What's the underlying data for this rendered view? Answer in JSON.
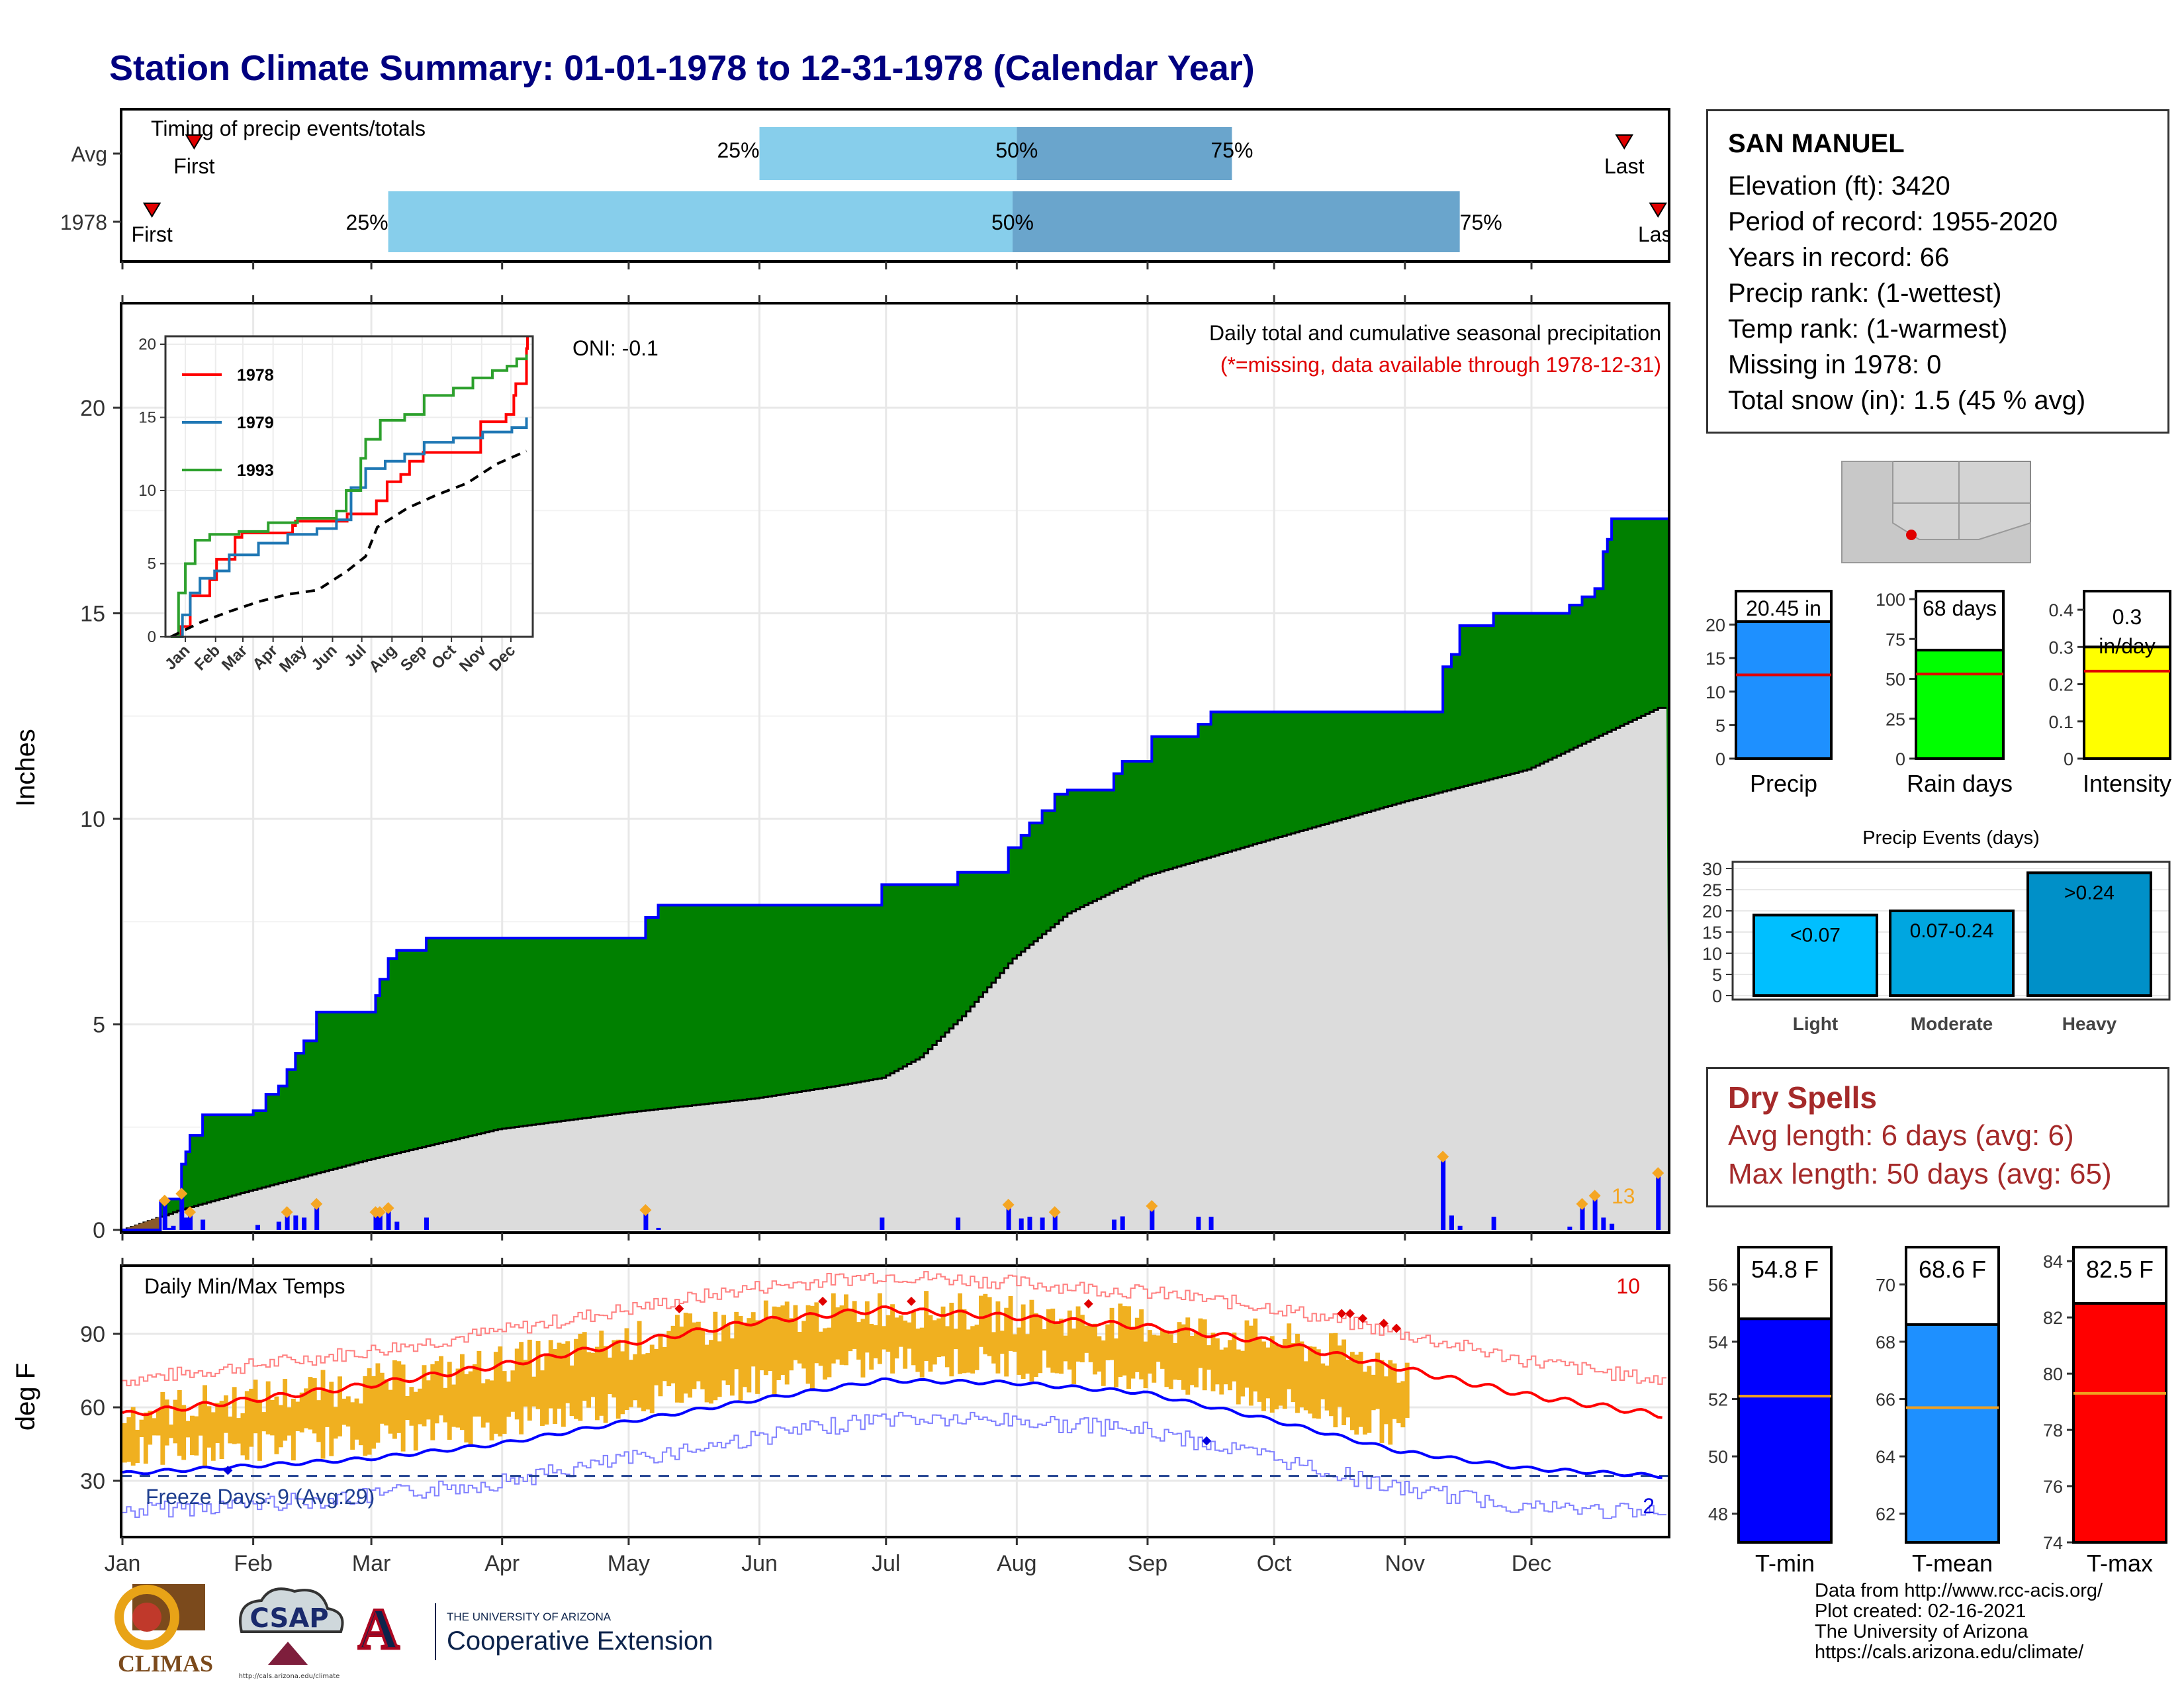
{
  "title": "Station Climate Summary: 01-01-1978 to 12-31-1978 (Calendar Year)",
  "station": {
    "name": "SAN MANUEL",
    "lines": [
      "Elevation (ft): 3420",
      "Period of record: 1955-2020",
      "Years in record: 66",
      "Precip rank:  (1-wettest)",
      "Temp rank:  (1-warmest)",
      "Missing in 1978: 0",
      "Total snow (in): 1.5 (45 % avg)"
    ]
  },
  "dry_spells": {
    "heading": "Dry Spells",
    "avg": "Avg length: 6 days (avg: 6)",
    "max": "Max length: 50 days (avg: 65)"
  },
  "credits": [
    "Data from http://www.rcc-acis.org/",
    "Plot created: 02-16-2021",
    "The University of Arizona",
    "https://cals.arizona.edu/climate/"
  ],
  "logos": {
    "climas": "CLIMAS",
    "csap": "CSAP",
    "csap_url": "http://cals.arizona.edu/climate",
    "ua_small": "THE UNIVERSITY OF ARIZONA",
    "ua_big": "Cooperative Extension"
  },
  "colors": {
    "precip_obs": "#008000",
    "precip_avg": "#dcdcdc",
    "cum_line": "#0000ff",
    "tmax": "#ff0000",
    "tmin": "#0000ff",
    "temp_bars": "#f0b020",
    "title": "#000080",
    "dry": "#a52a2a",
    "bar_light": "#87ceeb",
    "bar_dark": "#6aa5cc"
  },
  "chart_data": [
    {
      "type": "bar",
      "id": "timing",
      "title": "Timing of precip events/totals",
      "rows": [
        {
          "label": "Avg",
          "first": "Jan 18",
          "p25": "Jun 1",
          "p50": "Aug 1",
          "p75": "Sep 21",
          "last": "Dec 23",
          "first_label": "First",
          "last_label": "Last"
        },
        {
          "label": "1978",
          "first": "Jan 8",
          "p25": "Mar 5",
          "p50": "Jul 31",
          "p75": "Nov 14",
          "last": "Dec 31",
          "first_label": "First",
          "last_label": "Last"
        }
      ],
      "pct_labels": [
        "25%",
        "50%",
        "75%"
      ]
    },
    {
      "type": "area",
      "id": "precip",
      "title": "Daily total and cumulative seasonal precipitation",
      "subtitle": "(*=missing, data available through 1978-12-31)",
      "annotation": "ONI: -0.1",
      "ylabel": "Inches",
      "ylim": [
        0,
        22.5
      ],
      "yticks": [
        0,
        5,
        10,
        15,
        20
      ],
      "xticks": [
        "Jan",
        "Feb",
        "Mar",
        "Apr",
        "May",
        "Jun",
        "Jul",
        "Aug",
        "Sep",
        "Oct",
        "Nov",
        "Dec"
      ],
      "corner_count": "13",
      "cumulative_obs": [
        [
          1,
          0
        ],
        [
          10,
          0.7
        ],
        [
          12,
          0.75
        ],
        [
          15,
          1.6
        ],
        [
          16,
          1.9
        ],
        [
          17,
          2.3
        ],
        [
          20,
          2.8
        ],
        [
          31,
          2.8
        ],
        [
          32,
          2.9
        ],
        [
          35,
          3.3
        ],
        [
          38,
          3.5
        ],
        [
          40,
          3.9
        ],
        [
          42,
          4.3
        ],
        [
          44,
          4.6
        ],
        [
          45,
          4.6
        ],
        [
          47,
          5.3
        ],
        [
          60,
          5.3
        ],
        [
          61,
          5.7
        ],
        [
          62,
          6.1
        ],
        [
          64,
          6.6
        ],
        [
          66,
          6.8
        ],
        [
          72,
          6.8
        ],
        [
          73,
          7.1
        ],
        [
          124,
          7.1
        ],
        [
          125,
          7.6
        ],
        [
          128,
          7.9
        ],
        [
          180,
          7.9
        ],
        [
          181,
          8.4
        ],
        [
          198,
          8.4
        ],
        [
          199,
          8.7
        ],
        [
          210,
          8.7
        ],
        [
          211,
          9.3
        ],
        [
          214,
          9.6
        ],
        [
          216,
          9.9
        ],
        [
          219,
          10.2
        ],
        [
          222,
          10.6
        ],
        [
          225,
          10.7
        ],
        [
          235,
          10.7
        ],
        [
          236,
          11.1
        ],
        [
          238,
          11.4
        ],
        [
          244,
          11.4
        ],
        [
          245,
          12.0
        ],
        [
          255,
          12.0
        ],
        [
          256,
          12.3
        ],
        [
          259,
          12.6
        ],
        [
          313,
          12.6
        ],
        [
          314,
          13.7
        ],
        [
          316,
          14.0
        ],
        [
          318,
          14.7
        ],
        [
          325,
          14.7
        ],
        [
          326,
          15.0
        ],
        [
          343,
          15.0
        ],
        [
          344,
          15.2
        ],
        [
          347,
          15.4
        ],
        [
          349,
          15.4
        ],
        [
          350,
          15.6
        ],
        [
          352,
          16.5
        ],
        [
          353,
          16.8
        ],
        [
          354,
          17.3
        ],
        [
          367,
          17.3
        ],
        [
          368,
          17.4
        ],
        [
          369,
          18.5
        ],
        [
          385,
          18.5
        ],
        [
          386,
          19.7
        ],
        [
          400,
          19.7
        ],
        [
          401,
          19.9
        ],
        [
          403,
          20.5
        ]
      ],
      "cumulative_avg": [
        [
          1,
          0
        ],
        [
          15,
          0.5
        ],
        [
          31,
          0.95
        ],
        [
          59,
          1.7
        ],
        [
          90,
          2.45
        ],
        [
          120,
          2.85
        ],
        [
          151,
          3.2
        ],
        [
          170,
          3.5
        ],
        [
          181,
          3.7
        ],
        [
          190,
          4.2
        ],
        [
          200,
          5.2
        ],
        [
          212,
          6.6
        ],
        [
          225,
          7.7
        ],
        [
          243,
          8.6
        ],
        [
          273,
          9.5
        ],
        [
          304,
          10.4
        ],
        [
          334,
          11.2
        ],
        [
          365,
          12.7
        ]
      ],
      "daily_days": [
        11,
        12,
        13,
        15,
        16,
        17,
        20,
        33,
        38,
        40,
        42,
        44,
        47,
        61,
        62,
        64,
        66,
        73,
        125,
        128,
        181,
        199,
        211,
        214,
        216,
        219,
        222,
        236,
        238,
        245,
        256,
        259,
        314,
        316,
        318,
        326,
        344,
        347,
        350,
        352,
        354,
        365
      ],
      "daily_vals": [
        0.68,
        0.05,
        0.1,
        0.85,
        0.3,
        0.4,
        0.25,
        0.12,
        0.2,
        0.4,
        0.35,
        0.3,
        0.6,
        0.4,
        0.4,
        0.5,
        0.2,
        0.3,
        0.45,
        0.05,
        0.3,
        0.3,
        0.58,
        0.28,
        0.32,
        0.3,
        0.4,
        0.25,
        0.33,
        0.55,
        0.32,
        0.32,
        1.75,
        0.35,
        0.1,
        0.32,
        0.08,
        0.6,
        0.8,
        0.3,
        0.15,
        1.35
      ],
      "series": [
        {
          "name": "1978"
        }
      ]
    },
    {
      "type": "line",
      "id": "inset",
      "ylim": [
        0,
        20
      ],
      "yticks": [
        0,
        5,
        10,
        15,
        20
      ],
      "xticks": [
        "Jan",
        "Feb",
        "Mar",
        "Apr",
        "May",
        "Jun",
        "Jul",
        "Aug",
        "Sep",
        "Oct",
        "Nov",
        "Dec"
      ],
      "series": [
        {
          "name": "1978",
          "color": "#ff0000",
          "points": [
            [
              0,
              0
            ],
            [
              10,
              0.7
            ],
            [
              20,
              2.8
            ],
            [
              40,
              3.9
            ],
            [
              47,
              5.3
            ],
            [
              66,
              6.8
            ],
            [
              73,
              7.1
            ],
            [
              125,
              7.6
            ],
            [
              128,
              7.9
            ],
            [
              180,
              7.9
            ],
            [
              181,
              8.4
            ],
            [
              211,
              9.3
            ],
            [
              222,
              10.6
            ],
            [
              236,
              11.1
            ],
            [
              245,
              12.0
            ],
            [
              259,
              12.6
            ],
            [
              313,
              12.6
            ],
            [
              318,
              14.7
            ],
            [
              344,
              15.2
            ],
            [
              352,
              16.5
            ],
            [
              354,
              17.3
            ],
            [
              365,
              19.7
            ],
            [
              366,
              20.5
            ]
          ]
        },
        {
          "name": "1979",
          "color": "#1f77b4",
          "points": [
            [
              0,
              0
            ],
            [
              12,
              1.5
            ],
            [
              20,
              3.0
            ],
            [
              30,
              4.0
            ],
            [
              45,
              4.5
            ],
            [
              60,
              5.6
            ],
            [
              90,
              6.4
            ],
            [
              120,
              7.0
            ],
            [
              150,
              7.4
            ],
            [
              170,
              8.0
            ],
            [
              185,
              10.2
            ],
            [
              200,
              11.5
            ],
            [
              220,
              12.0
            ],
            [
              240,
              12.5
            ],
            [
              260,
              13.3
            ],
            [
              290,
              13.6
            ],
            [
              320,
              14.0
            ],
            [
              350,
              14.3
            ],
            [
              365,
              15.0
            ]
          ]
        },
        {
          "name": "1993",
          "color": "#2ca02c",
          "points": [
            [
              0,
              0
            ],
            [
              8,
              3.0
            ],
            [
              15,
              5.0
            ],
            [
              25,
              6.6
            ],
            [
              40,
              7.0
            ],
            [
              70,
              7.2
            ],
            [
              100,
              7.8
            ],
            [
              130,
              8.1
            ],
            [
              170,
              8.6
            ],
            [
              180,
              10.0
            ],
            [
              195,
              12.2
            ],
            [
              200,
              13.5
            ],
            [
              215,
              14.8
            ],
            [
              240,
              15.2
            ],
            [
              260,
              16.5
            ],
            [
              290,
              17.0
            ],
            [
              310,
              17.7
            ],
            [
              330,
              18.2
            ],
            [
              345,
              18.5
            ],
            [
              355,
              19.0
            ],
            [
              365,
              19.3
            ]
          ]
        },
        {
          "name": "Avg",
          "color": "#000000",
          "points": [
            [
              0,
              0
            ],
            [
              31,
              1.0
            ],
            [
              59,
              1.7
            ],
            [
              90,
              2.4
            ],
            [
              120,
              2.9
            ],
            [
              151,
              3.2
            ],
            [
              181,
              4.5
            ],
            [
              200,
              5.5
            ],
            [
              212,
              7.5
            ],
            [
              243,
              8.8
            ],
            [
              273,
              9.7
            ],
            [
              304,
              10.5
            ],
            [
              334,
              11.8
            ],
            [
              365,
              12.7
            ]
          ]
        }
      ]
    },
    {
      "type": "line",
      "id": "temps",
      "title": "Daily Min/Max Temps",
      "ylabel": "deg F",
      "ylim": [
        10,
        115
      ],
      "yticks": [
        30,
        60,
        90
      ],
      "xticks": [
        "Jan",
        "Feb",
        "Mar",
        "Apr",
        "May",
        "Jun",
        "Jul",
        "Aug",
        "Sep",
        "Oct",
        "Nov",
        "Dec"
      ],
      "freeze_label": "Freeze Days: 9 (Avg:29)",
      "count_hot": "10",
      "count_cold": "2",
      "avg_max": [
        [
          1,
          57
        ],
        [
          31,
          63
        ],
        [
          59,
          69
        ],
        [
          90,
          77
        ],
        [
          120,
          86
        ],
        [
          151,
          95
        ],
        [
          181,
          100
        ],
        [
          212,
          97
        ],
        [
          243,
          93
        ],
        [
          273,
          87
        ],
        [
          304,
          76
        ],
        [
          334,
          65
        ],
        [
          365,
          57
        ]
      ],
      "avg_min": [
        [
          1,
          33
        ],
        [
          31,
          36
        ],
        [
          59,
          39
        ],
        [
          90,
          45
        ],
        [
          120,
          54
        ],
        [
          151,
          63
        ],
        [
          181,
          71
        ],
        [
          212,
          70
        ],
        [
          243,
          66
        ],
        [
          273,
          55
        ],
        [
          304,
          42
        ],
        [
          334,
          35
        ],
        [
          365,
          32
        ]
      ]
    },
    {
      "type": "bar",
      "id": "precip_summary",
      "categories": [
        "Precip",
        "Rain days",
        "Intensity"
      ],
      "values": [
        20.45,
        68,
        0.3
      ],
      "labels": [
        "20.45 in",
        "68 days",
        "0.3"
      ],
      "label_extra": [
        "",
        "",
        "in/day"
      ],
      "averages": [
        12.5,
        53,
        0.235
      ],
      "ylims": [
        [
          0,
          25
        ],
        [
          0,
          105
        ],
        [
          0,
          0.45
        ]
      ],
      "yticks": [
        [
          0,
          5,
          10,
          15,
          20
        ],
        [
          0,
          25,
          50,
          75,
          100
        ],
        [
          0.0,
          0.1,
          0.2,
          0.3,
          0.4
        ]
      ],
      "colors": [
        "#1e90ff",
        "#00ff00",
        "#ffff00"
      ]
    },
    {
      "type": "bar",
      "id": "events",
      "title": "Precip Events (days)",
      "categories": [
        "Light",
        "Moderate",
        "Heavy"
      ],
      "values": [
        19,
        20,
        29
      ],
      "bar_labels": [
        "<0.07",
        "0.07-0.24",
        ">0.24"
      ],
      "ylim": [
        0,
        30
      ],
      "yticks": [
        0,
        5,
        10,
        15,
        20,
        25,
        30
      ],
      "colors": [
        "#00bfff",
        "#00a6e0",
        "#0090c8"
      ]
    },
    {
      "type": "bar",
      "id": "temp_summary",
      "categories": [
        "T-min",
        "T-mean",
        "T-max"
      ],
      "values": [
        54.8,
        68.6,
        82.5
      ],
      "labels": [
        "54.8 F",
        "68.6 F",
        "82.5 F"
      ],
      "averages": [
        52.1,
        65.7,
        79.3
      ],
      "ylims": [
        [
          47,
          57.3
        ],
        [
          61,
          71.3
        ],
        [
          74,
          84.5
        ]
      ],
      "yticks": [
        [
          48,
          50,
          52,
          54,
          56
        ],
        [
          62,
          64,
          66,
          68,
          70
        ],
        [
          74,
          76,
          78,
          80,
          82,
          84
        ]
      ],
      "colors": [
        "#0000ff",
        "#1e90ff",
        "#ff0000"
      ]
    }
  ]
}
